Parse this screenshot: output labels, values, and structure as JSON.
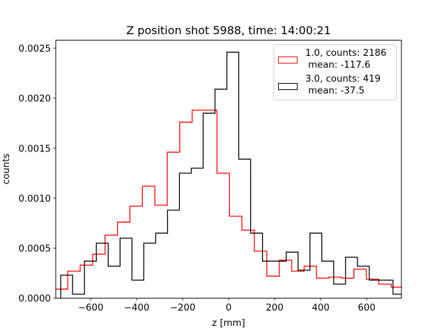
{
  "chart_data": {
    "type": "histogram",
    "title": "Z position shot 5988, time: 14:00:21",
    "xlabel": "z [mm]",
    "ylabel": "counts",
    "xlim": [
      -752,
      751
    ],
    "ylim": [
      0,
      0.00258
    ],
    "grid": false,
    "legend_position": "top-right",
    "x_ticks": [
      -600,
      -400,
      -200,
      0,
      200,
      400,
      600
    ],
    "x_tick_labels": [
      "−600",
      "−400",
      "−200",
      "0",
      "200",
      "400",
      "600"
    ],
    "y_ticks": [
      0,
      0.0005,
      0.001,
      0.0015,
      0.002,
      0.0025
    ],
    "y_tick_labels": [
      "0.0000",
      "0.0005",
      "0.0010",
      "0.0015",
      "0.0020",
      "0.0025"
    ],
    "series": [
      {
        "name": "1.0",
        "legend_line1": "1.0, counts: 2186",
        "legend_line2": " mean: -117.6",
        "color": "#ff0000",
        "bin_start": -754,
        "bin_width": 54.1,
        "values": [
          9e-05,
          0.00027,
          0.00033,
          0.00044,
          0.00063,
          0.00076,
          0.00092,
          0.00112,
          0.00093,
          0.00146,
          0.00176,
          0.00188,
          0.00188,
          0.00125,
          0.00082,
          0.00068,
          0.00047,
          0.00022,
          0.00038,
          0.00027,
          0.00032,
          0.0002,
          0.00021,
          0.0002,
          0.00029,
          0.00019,
          0.00014,
          0.00011
        ]
      },
      {
        "name": "3.0",
        "legend_line1": "3.0, counts: 419",
        "legend_line2": " mean: -37.5",
        "color": "#000000",
        "bin_start": -730.3,
        "bin_width": 51.6,
        "values": [
          0.00023,
          4e-05,
          0.00037,
          0.00055,
          0.00032,
          0.0006,
          0.00018,
          0.00055,
          0.00065,
          0.00088,
          0.00125,
          0.0013,
          0.00185,
          0.00209,
          0.00246,
          0.00139,
          0.00065,
          0.00037,
          0.00037,
          0.00046,
          0.00028,
          0.00065,
          0.00037,
          0.00014,
          0.00041,
          0.00032,
          0.00018,
          0.00018,
          4e-05
        ]
      }
    ]
  }
}
